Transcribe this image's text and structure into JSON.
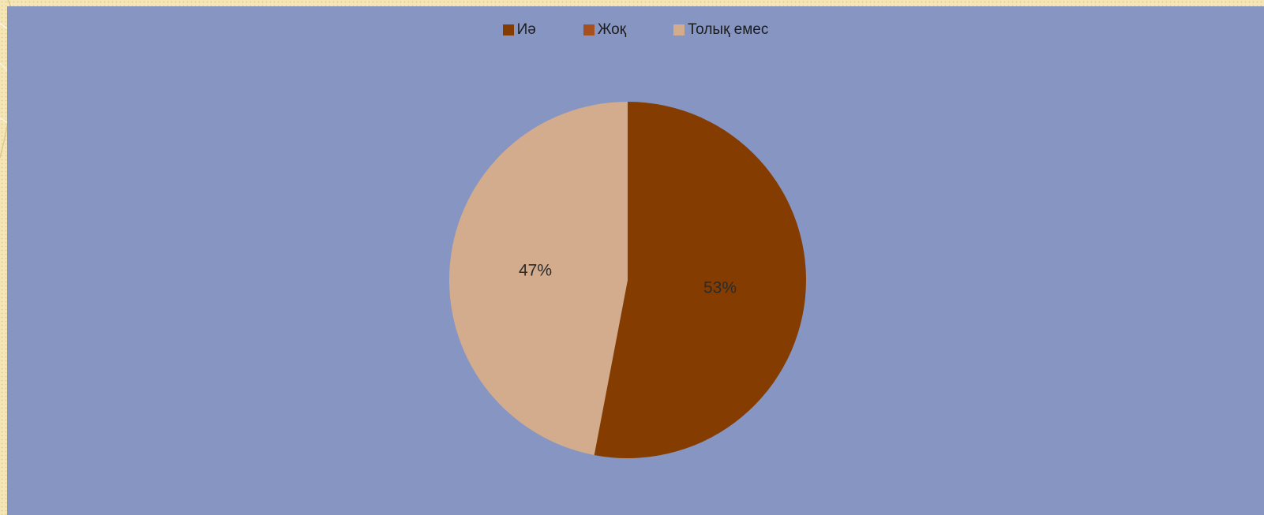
{
  "chart_data": {
    "type": "pie",
    "categories": [
      "Иә",
      "Жоқ",
      "Толық емес"
    ],
    "values": [
      53,
      0,
      47
    ],
    "data_labels": [
      "53%",
      "",
      "47%"
    ],
    "colors": [
      "#843c00",
      "#a5501e",
      "#d2ac8c"
    ],
    "legend_position": "top",
    "start_angle_deg": 0
  },
  "background": {
    "panel_color": "#8795c3",
    "page_color": "#f5e6b8"
  }
}
